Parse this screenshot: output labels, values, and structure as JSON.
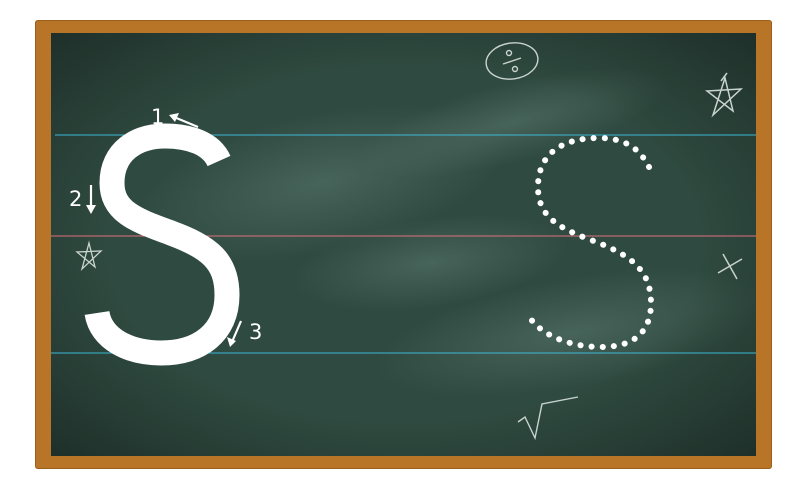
{
  "letter": "S",
  "strokes": [
    {
      "number": "1",
      "arrow": "arrow-up-left"
    },
    {
      "number": "2",
      "arrow": "arrow-down"
    },
    {
      "number": "3",
      "arrow": "arrow-down-left"
    }
  ],
  "doodles": [
    "percent-icon",
    "star-icon",
    "star-icon",
    "cross-icon",
    "square-root-icon"
  ],
  "colors": {
    "frame": "#b87528",
    "board": "#2f4a40",
    "guide_line": "#3bb7d8",
    "mid_line": "#e0707a",
    "letter": "#ffffff",
    "chalk": "#c9d3cf"
  }
}
